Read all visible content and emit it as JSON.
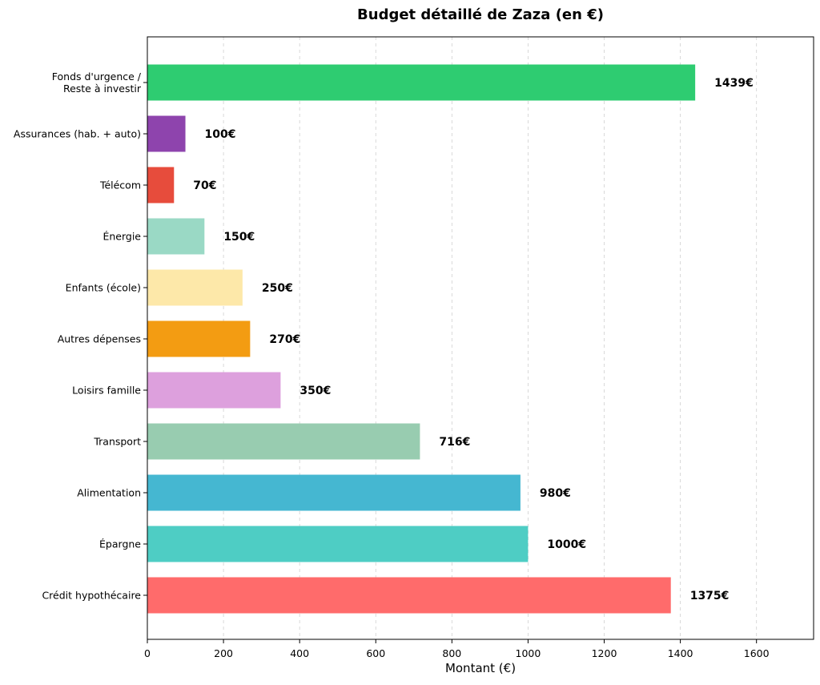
{
  "chart_data": {
    "type": "bar",
    "orientation": "horizontal",
    "title": "Budget détaillé de Zaza (en €)",
    "xlabel": "Montant (€)",
    "ylabel": "",
    "xlim": [
      0,
      1750
    ],
    "xticks": [
      0,
      200,
      400,
      600,
      800,
      1000,
      1200,
      1400,
      1600
    ],
    "grid": "vertical dashed",
    "categories": [
      "Fonds d'urgence /\nReste à investir",
      "Assurances (hab. + auto)",
      "Télécom",
      "Énergie",
      "Enfants (école)",
      "Autres dépenses",
      "Loisirs famille",
      "Transport",
      "Alimentation",
      "Épargne",
      "Crédit hypothécaire"
    ],
    "values": [
      1439,
      100,
      70,
      150,
      250,
      270,
      350,
      716,
      980,
      1000,
      1375
    ],
    "value_labels": [
      "1439€",
      "100€",
      "70€",
      "150€",
      "250€",
      "270€",
      "350€",
      "716€",
      "980€",
      "1000€",
      "1375€"
    ],
    "colors": [
      "#2ecc71",
      "#8e44ad",
      "#e74c3c",
      "#9ad9c5",
      "#fde8a9",
      "#f39c12",
      "#dda0dd",
      "#98ccb0",
      "#45b7d1",
      "#4ecdc4",
      "#ff6b6b"
    ]
  }
}
